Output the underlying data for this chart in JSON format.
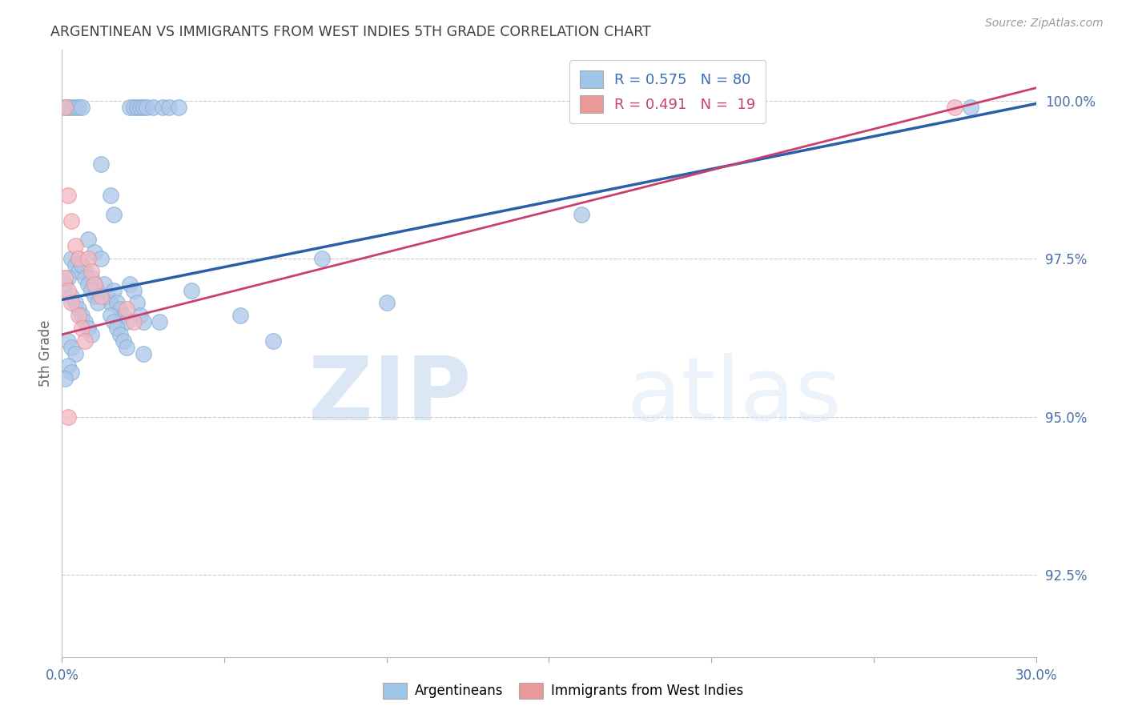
{
  "title": "ARGENTINEAN VS IMMIGRANTS FROM WEST INDIES 5TH GRADE CORRELATION CHART",
  "source": "Source: ZipAtlas.com",
  "ylabel": "5th Grade",
  "ytick_labels": [
    "92.5%",
    "95.0%",
    "97.5%",
    "100.0%"
  ],
  "ytick_values": [
    0.925,
    0.95,
    0.975,
    1.0
  ],
  "xmin": 0.0,
  "xmax": 0.3,
  "ymin": 0.912,
  "ymax": 1.008,
  "blue_scatter_color": "#aec6e8",
  "pink_scatter_color": "#f4b8c1",
  "blue_edge_color": "#7bafd4",
  "pink_edge_color": "#e8909a",
  "blue_line_color": "#2c5fa8",
  "pink_line_color": "#c94070",
  "blue_legend_color": "#9fc5e8",
  "pink_legend_color": "#ea9999",
  "blue_legend_text_color": "#3a6db5",
  "pink_legend_text_color": "#c94070",
  "tick_color": "#4a6fa8",
  "title_color": "#404040",
  "grid_color": "#cccccc",
  "watermark_zip_color": "#c5d8f0",
  "watermark_atlas_color": "#d5e5f5",
  "background_color": "#ffffff",
  "blue_line_x": [
    0.0,
    0.3
  ],
  "blue_line_y": [
    0.9685,
    0.9995
  ],
  "pink_line_x": [
    0.0,
    0.3
  ],
  "pink_line_y": [
    0.963,
    1.002
  ],
  "blue_points": [
    [
      0.001,
      0.999
    ],
    [
      0.002,
      0.999
    ],
    [
      0.003,
      0.999
    ],
    [
      0.004,
      0.999
    ],
    [
      0.005,
      0.999
    ],
    [
      0.006,
      0.999
    ],
    [
      0.021,
      0.999
    ],
    [
      0.022,
      0.999
    ],
    [
      0.023,
      0.999
    ],
    [
      0.024,
      0.999
    ],
    [
      0.025,
      0.999
    ],
    [
      0.026,
      0.999
    ],
    [
      0.028,
      0.999
    ],
    [
      0.031,
      0.999
    ],
    [
      0.033,
      0.999
    ],
    [
      0.036,
      0.999
    ],
    [
      0.012,
      0.99
    ],
    [
      0.015,
      0.985
    ],
    [
      0.016,
      0.982
    ],
    [
      0.008,
      0.978
    ],
    [
      0.01,
      0.976
    ],
    [
      0.012,
      0.975
    ],
    [
      0.006,
      0.974
    ],
    [
      0.007,
      0.973
    ],
    [
      0.009,
      0.972
    ],
    [
      0.01,
      0.971
    ],
    [
      0.011,
      0.97
    ],
    [
      0.013,
      0.971
    ],
    [
      0.014,
      0.969
    ],
    [
      0.015,
      0.968
    ],
    [
      0.016,
      0.97
    ],
    [
      0.017,
      0.968
    ],
    [
      0.018,
      0.967
    ],
    [
      0.019,
      0.966
    ],
    [
      0.02,
      0.965
    ],
    [
      0.021,
      0.971
    ],
    [
      0.022,
      0.97
    ],
    [
      0.023,
      0.968
    ],
    [
      0.024,
      0.966
    ],
    [
      0.025,
      0.965
    ],
    [
      0.003,
      0.975
    ],
    [
      0.004,
      0.974
    ],
    [
      0.005,
      0.973
    ],
    [
      0.002,
      0.972
    ],
    [
      0.001,
      0.971
    ],
    [
      0.003,
      0.969
    ],
    [
      0.004,
      0.968
    ],
    [
      0.005,
      0.967
    ],
    [
      0.006,
      0.966
    ],
    [
      0.007,
      0.965
    ],
    [
      0.008,
      0.964
    ],
    [
      0.009,
      0.963
    ],
    [
      0.002,
      0.962
    ],
    [
      0.003,
      0.961
    ],
    [
      0.004,
      0.96
    ],
    [
      0.005,
      0.975
    ],
    [
      0.006,
      0.974
    ],
    [
      0.007,
      0.972
    ],
    [
      0.008,
      0.971
    ],
    [
      0.009,
      0.97
    ],
    [
      0.01,
      0.969
    ],
    [
      0.011,
      0.968
    ],
    [
      0.015,
      0.966
    ],
    [
      0.016,
      0.965
    ],
    [
      0.017,
      0.964
    ],
    [
      0.018,
      0.963
    ],
    [
      0.019,
      0.962
    ],
    [
      0.02,
      0.961
    ],
    [
      0.025,
      0.96
    ],
    [
      0.03,
      0.965
    ],
    [
      0.04,
      0.97
    ],
    [
      0.055,
      0.966
    ],
    [
      0.065,
      0.962
    ],
    [
      0.08,
      0.975
    ],
    [
      0.1,
      0.968
    ],
    [
      0.16,
      0.982
    ],
    [
      0.28,
      0.999
    ],
    [
      0.002,
      0.958
    ],
    [
      0.003,
      0.957
    ],
    [
      0.001,
      0.956
    ]
  ],
  "pink_points": [
    [
      0.001,
      0.999
    ],
    [
      0.002,
      0.985
    ],
    [
      0.003,
      0.981
    ],
    [
      0.004,
      0.977
    ],
    [
      0.005,
      0.975
    ],
    [
      0.001,
      0.972
    ],
    [
      0.002,
      0.97
    ],
    [
      0.003,
      0.968
    ],
    [
      0.005,
      0.966
    ],
    [
      0.006,
      0.964
    ],
    [
      0.007,
      0.962
    ],
    [
      0.008,
      0.975
    ],
    [
      0.009,
      0.973
    ],
    [
      0.01,
      0.971
    ],
    [
      0.012,
      0.969
    ],
    [
      0.02,
      0.967
    ],
    [
      0.022,
      0.965
    ],
    [
      0.002,
      0.95
    ],
    [
      0.275,
      0.999
    ]
  ]
}
